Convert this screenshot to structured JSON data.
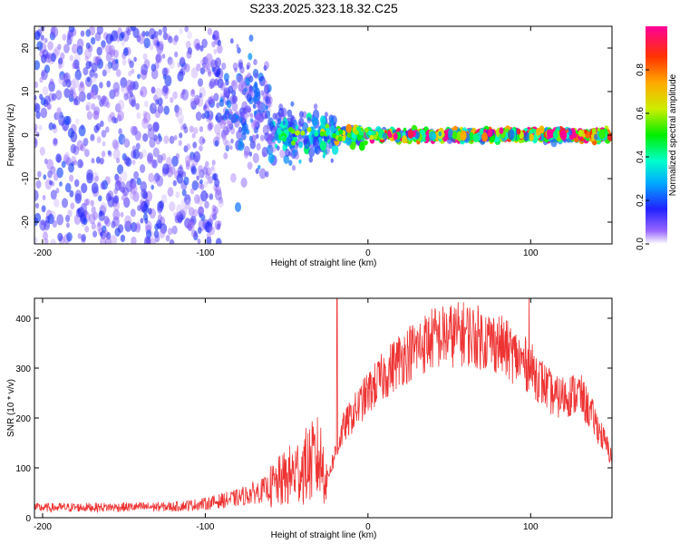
{
  "title": "S233.2025.323.18.32.C25",
  "chart_data": [
    {
      "type": "heatmap",
      "name": "spectrogram",
      "xlabel": "Height of straight line (km)",
      "ylabel": "Frequency (Hz)",
      "xlim": [
        -205,
        150
      ],
      "ylim": [
        -25,
        25
      ],
      "xticks": [
        -200,
        -100,
        0,
        100
      ],
      "yticks": [
        -20,
        -10,
        0,
        10,
        20
      ],
      "xtick_labels": [
        "-200",
        "-100",
        "0",
        "100"
      ],
      "ytick_labels": [
        "-20",
        "-10",
        "0",
        "10",
        "20"
      ],
      "colorbar": {
        "label": "Normalized spectral amplitude",
        "range": [
          0.0,
          1.0
        ],
        "ticks": [
          0.0,
          0.2,
          0.4,
          0.6,
          0.8
        ],
        "tick_labels": [
          "0.0",
          "0.2",
          "0.4",
          "0.6",
          "0.8"
        ]
      },
      "description_bands": [
        {
          "x_range": [
            -205,
            -90
          ],
          "freq_spread": 25,
          "amplitude": 0.15
        },
        {
          "x_range": [
            -90,
            -60
          ],
          "freq_spread": 12,
          "amplitude": 0.2
        },
        {
          "x_range": [
            -60,
            -20
          ],
          "freq_spread": 5,
          "amplitude": 0.35
        },
        {
          "x_range": [
            -20,
            0
          ],
          "freq_spread": 2,
          "amplitude": 0.6
        },
        {
          "x_range": [
            0,
            150
          ],
          "freq_spread": 1,
          "amplitude": 0.95
        }
      ]
    },
    {
      "type": "line",
      "name": "snr",
      "xlabel": "Height of straight line (km)",
      "ylabel": "SNR (10 * v/v)",
      "xlim": [
        -205,
        150
      ],
      "ylim": [
        0,
        440
      ],
      "xticks": [
        -200,
        -100,
        0,
        100
      ],
      "yticks": [
        0,
        100,
        200,
        300,
        400
      ],
      "xtick_labels": [
        "-200",
        "-100",
        "0",
        "100"
      ],
      "ytick_labels": [
        "0",
        "100",
        "200",
        "300",
        "400"
      ],
      "color": "#ee3333",
      "trend": {
        "x": [
          -205,
          -120,
          -100,
          -80,
          -60,
          -40,
          -30,
          -25,
          -15,
          0,
          20,
          40,
          60,
          80,
          100,
          115,
          130,
          140,
          150
        ],
        "y": [
          20,
          22,
          28,
          40,
          60,
          100,
          120,
          80,
          180,
          250,
          320,
          360,
          370,
          350,
          300,
          240,
          250,
          190,
          120
        ]
      },
      "spikes": [
        {
          "x": -19,
          "y": 440
        },
        {
          "x": 99,
          "y": 440
        }
      ]
    }
  ]
}
